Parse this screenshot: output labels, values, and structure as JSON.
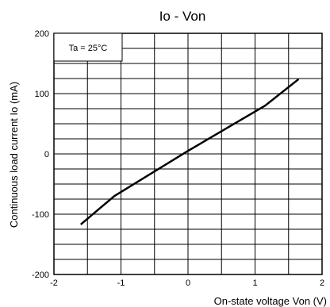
{
  "chart_data": {
    "type": "line",
    "title": "Io - Von",
    "xlabel": "On-state voltage Von (V)",
    "ylabel": "Continuous load current Io (mA)",
    "xlim": [
      -2,
      2
    ],
    "ylim": [
      -200,
      200
    ],
    "x_ticks": [
      "-2",
      "-1",
      "0",
      "1",
      "2"
    ],
    "y_ticks": [
      "200",
      "100",
      "0",
      "-100",
      "-200"
    ],
    "grid": true,
    "annotation": "Ta = 25°C",
    "series": [
      {
        "x": [
          -1.6,
          -1.1,
          0.0,
          1.15,
          1.65
        ],
        "y": [
          -117,
          -70,
          5,
          80,
          124
        ]
      }
    ],
    "line_color": "#000000"
  }
}
